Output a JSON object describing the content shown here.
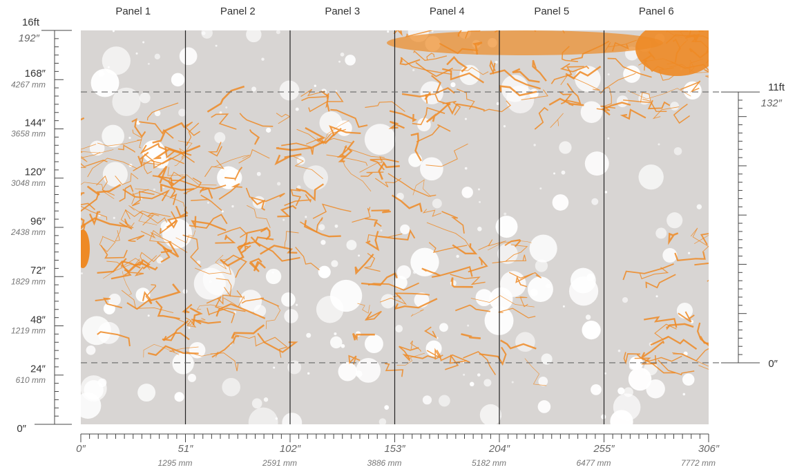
{
  "panels": [
    "Panel 1",
    "Panel 2",
    "Panel 3",
    "Panel 4",
    "Panel 5",
    "Panel 6"
  ],
  "left_ruler": {
    "top_ft": "16ft",
    "top_in": "192″",
    "marks": [
      {
        "in": "168″",
        "mm": "4267 mm"
      },
      {
        "in": "144″",
        "mm": "3658 mm"
      },
      {
        "in": "120″",
        "mm": "3048 mm"
      },
      {
        "in": "96″",
        "mm": "2438 mm"
      },
      {
        "in": "72″",
        "mm": "1829 mm"
      },
      {
        "in": "48″",
        "mm": "1219 mm"
      },
      {
        "in": "24″",
        "mm": "610 mm"
      }
    ],
    "bottom": "0″"
  },
  "right_ruler": {
    "top_ft": "11ft",
    "top_in": "132″",
    "bottom": "0″"
  },
  "bottom_ruler": {
    "start": "0″",
    "marks": [
      {
        "in": "51″",
        "mm": "1295 mm"
      },
      {
        "in": "102″",
        "mm": "2591 mm"
      },
      {
        "in": "153″",
        "mm": "3886 mm"
      },
      {
        "in": "204″",
        "mm": "5182 mm"
      },
      {
        "in": "255″",
        "mm": "6477 mm"
      },
      {
        "in": "306″",
        "mm": "7772 mm"
      }
    ]
  }
}
